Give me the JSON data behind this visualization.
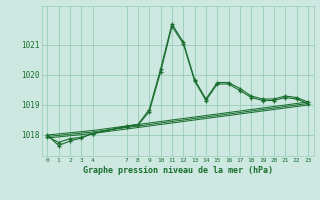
{
  "title": "Graphe pression niveau de la mer (hPa)",
  "bg_color": "#cce8e0",
  "grid_color": "#99ccbb",
  "line_color": "#1a6e2e",
  "xlim": [
    -0.5,
    23.5
  ],
  "ylim": [
    1017.3,
    1022.3
  ],
  "yticks": [
    1018,
    1019,
    1020,
    1021
  ],
  "xticks": [
    0,
    1,
    2,
    3,
    4,
    7,
    8,
    9,
    10,
    11,
    12,
    13,
    14,
    15,
    16,
    17,
    18,
    19,
    20,
    21,
    22,
    23
  ],
  "series": [
    {
      "x": [
        0,
        1,
        2,
        3,
        4,
        7,
        8,
        9,
        10,
        11,
        12,
        13,
        14,
        15,
        16,
        17,
        18,
        19,
        20,
        21,
        22,
        23
      ],
      "y": [
        1018.0,
        1017.65,
        1017.8,
        1017.9,
        1018.05,
        1018.3,
        1018.35,
        1018.85,
        1020.2,
        1021.7,
        1021.1,
        1019.85,
        1019.2,
        1019.75,
        1019.75,
        1019.55,
        1019.3,
        1019.2,
        1019.2,
        1019.3,
        1019.25,
        1019.1
      ],
      "marker": true
    },
    {
      "x": [
        0,
        1,
        2,
        3,
        4,
        7,
        8,
        9,
        10,
        11,
        12,
        13,
        14,
        15,
        16,
        17,
        18,
        19,
        20,
        21,
        22,
        23
      ],
      "y": [
        1017.95,
        1017.75,
        1017.88,
        1017.92,
        1018.05,
        1018.28,
        1018.33,
        1018.78,
        1020.1,
        1021.62,
        1021.05,
        1019.8,
        1019.15,
        1019.7,
        1019.7,
        1019.48,
        1019.25,
        1019.15,
        1019.15,
        1019.25,
        1019.2,
        1019.05
      ],
      "marker": true
    },
    {
      "x": [
        0,
        4,
        23
      ],
      "y": [
        1017.9,
        1018.05,
        1019.0
      ],
      "marker": false
    },
    {
      "x": [
        0,
        4,
        23
      ],
      "y": [
        1017.95,
        1018.1,
        1019.05
      ],
      "marker": false
    },
    {
      "x": [
        0,
        4,
        23
      ],
      "y": [
        1018.0,
        1018.15,
        1019.1
      ],
      "marker": false
    }
  ]
}
